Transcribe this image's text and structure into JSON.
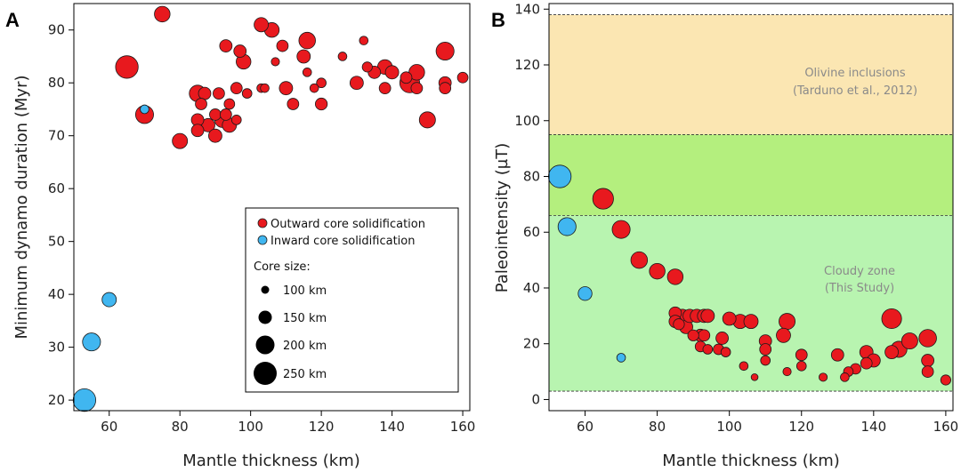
{
  "chart_data": [
    {
      "panel": "A",
      "type": "scatter",
      "xlabel": "Mantle thickness (km)",
      "ylabel": "Minimum dynamo duration (Myr)",
      "xlim": [
        50,
        162
      ],
      "ylim": [
        18,
        95
      ],
      "xticks": [
        60,
        80,
        100,
        120,
        140,
        160
      ],
      "yticks": [
        20,
        30,
        40,
        50,
        60,
        70,
        80,
        90
      ],
      "grid": false,
      "legend_position": "lower-right",
      "series": [
        {
          "name": "Outward core solidification",
          "color": "#e8191e",
          "points": [
            {
              "x": 65,
              "y": 83,
              "core_km": 250
            },
            {
              "x": 75,
              "y": 93,
              "core_km": 175
            },
            {
              "x": 70,
              "y": 74,
              "core_km": 200
            },
            {
              "x": 80,
              "y": 69,
              "core_km": 170
            },
            {
              "x": 85,
              "y": 78,
              "core_km": 185
            },
            {
              "x": 85,
              "y": 73,
              "core_km": 140
            },
            {
              "x": 85,
              "y": 71,
              "core_km": 140
            },
            {
              "x": 86,
              "y": 76,
              "core_km": 130
            },
            {
              "x": 87,
              "y": 78,
              "core_km": 140
            },
            {
              "x": 88,
              "y": 72,
              "core_km": 150
            },
            {
              "x": 90,
              "y": 74,
              "core_km": 130
            },
            {
              "x": 90,
              "y": 70,
              "core_km": 150
            },
            {
              "x": 91,
              "y": 78,
              "core_km": 130
            },
            {
              "x": 92,
              "y": 73,
              "core_km": 170
            },
            {
              "x": 93,
              "y": 74,
              "core_km": 130
            },
            {
              "x": 93,
              "y": 87,
              "core_km": 140
            },
            {
              "x": 94,
              "y": 76,
              "core_km": 120
            },
            {
              "x": 94,
              "y": 72,
              "core_km": 160
            },
            {
              "x": 96,
              "y": 73,
              "core_km": 110
            },
            {
              "x": 96,
              "y": 79,
              "core_km": 130
            },
            {
              "x": 97,
              "y": 86,
              "core_km": 140
            },
            {
              "x": 98,
              "y": 84,
              "core_km": 165
            },
            {
              "x": 99,
              "y": 78,
              "core_km": 110
            },
            {
              "x": 103,
              "y": 91,
              "core_km": 160
            },
            {
              "x": 103,
              "y": 79,
              "core_km": 100
            },
            {
              "x": 104,
              "y": 79,
              "core_km": 100
            },
            {
              "x": 106,
              "y": 90,
              "core_km": 165
            },
            {
              "x": 107,
              "y": 84,
              "core_km": 95
            },
            {
              "x": 109,
              "y": 87,
              "core_km": 130
            },
            {
              "x": 110,
              "y": 79,
              "core_km": 150
            },
            {
              "x": 112,
              "y": 76,
              "core_km": 130
            },
            {
              "x": 115,
              "y": 85,
              "core_km": 150
            },
            {
              "x": 116,
              "y": 88,
              "core_km": 185
            },
            {
              "x": 116,
              "y": 82,
              "core_km": 100
            },
            {
              "x": 118,
              "y": 79,
              "core_km": 100
            },
            {
              "x": 120,
              "y": 80,
              "core_km": 110
            },
            {
              "x": 120,
              "y": 76,
              "core_km": 135
            },
            {
              "x": 126,
              "y": 85,
              "core_km": 100
            },
            {
              "x": 130,
              "y": 80,
              "core_km": 150
            },
            {
              "x": 132,
              "y": 88,
              "core_km": 100
            },
            {
              "x": 133,
              "y": 83,
              "core_km": 115
            },
            {
              "x": 135,
              "y": 82,
              "core_km": 140
            },
            {
              "x": 138,
              "y": 83,
              "core_km": 165
            },
            {
              "x": 138,
              "y": 79,
              "core_km": 130
            },
            {
              "x": 140,
              "y": 82,
              "core_km": 150
            },
            {
              "x": 144,
              "y": 81,
              "core_km": 130
            },
            {
              "x": 145,
              "y": 80,
              "core_km": 220
            },
            {
              "x": 147,
              "y": 82,
              "core_km": 175
            },
            {
              "x": 147,
              "y": 79,
              "core_km": 130
            },
            {
              "x": 150,
              "y": 73,
              "core_km": 180
            },
            {
              "x": 155,
              "y": 86,
              "core_km": 200
            },
            {
              "x": 155,
              "y": 80,
              "core_km": 140
            },
            {
              "x": 155,
              "y": 79,
              "core_km": 130
            },
            {
              "x": 160,
              "y": 81,
              "core_km": 120
            }
          ]
        },
        {
          "name": "Inward core solidification",
          "color": "#40b6f0",
          "points": [
            {
              "x": 53,
              "y": 20,
              "core_km": 250
            },
            {
              "x": 55,
              "y": 31,
              "core_km": 200
            },
            {
              "x": 60,
              "y": 39,
              "core_km": 160
            },
            {
              "x": 70,
              "y": 75,
              "core_km": 100
            }
          ]
        }
      ],
      "size_legend": {
        "title": "Core size:",
        "entries": [
          {
            "label": "100 km",
            "core_km": 100
          },
          {
            "label": "150 km",
            "core_km": 150
          },
          {
            "label": "200 km",
            "core_km": 200
          },
          {
            "label": "250 km",
            "core_km": 250
          }
        ]
      }
    },
    {
      "panel": "B",
      "type": "scatter",
      "xlabel": "Mantle thickness (km)",
      "ylabel": "Paleointensity (µT)",
      "xlim": [
        50,
        162
      ],
      "ylim": [
        -4,
        142
      ],
      "xticks": [
        60,
        80,
        100,
        120,
        140,
        160
      ],
      "yticks": [
        0,
        20,
        40,
        60,
        80,
        100,
        120,
        140
      ],
      "grid": false,
      "bands": [
        {
          "y0": 95,
          "y1": 138,
          "color": "#fbe6b2",
          "label_lines": [
            "Olivine inclusions",
            "(Tarduno et al., 2012)"
          ]
        },
        {
          "y0": 66,
          "y1": 95,
          "color": "#b4ef7e",
          "label_lines": []
        },
        {
          "y0": 3,
          "y1": 66,
          "color": "#b8f4b0",
          "label_lines": [
            "Cloudy zone",
            "(This Study)"
          ]
        }
      ],
      "band_boundaries": [
        138,
        95,
        66,
        3
      ],
      "series": [
        {
          "name": "Outward core solidification",
          "color": "#e8191e",
          "points": [
            {
              "x": 65,
              "y": 72,
              "core_km": 230
            },
            {
              "x": 70,
              "y": 61,
              "core_km": 200
            },
            {
              "x": 75,
              "y": 50,
              "core_km": 185
            },
            {
              "x": 80,
              "y": 46,
              "core_km": 175
            },
            {
              "x": 85,
              "y": 44,
              "core_km": 175
            },
            {
              "x": 85,
              "y": 31,
              "core_km": 140
            },
            {
              "x": 85,
              "y": 28,
              "core_km": 140
            },
            {
              "x": 86,
              "y": 27,
              "core_km": 125
            },
            {
              "x": 87,
              "y": 30,
              "core_km": 150
            },
            {
              "x": 88,
              "y": 26,
              "core_km": 150
            },
            {
              "x": 89,
              "y": 30,
              "core_km": 150
            },
            {
              "x": 90,
              "y": 23,
              "core_km": 125
            },
            {
              "x": 91,
              "y": 30,
              "core_km": 150
            },
            {
              "x": 92,
              "y": 23,
              "core_km": 140
            },
            {
              "x": 92,
              "y": 19,
              "core_km": 120
            },
            {
              "x": 93,
              "y": 30,
              "core_km": 150
            },
            {
              "x": 93,
              "y": 23,
              "core_km": 130
            },
            {
              "x": 94,
              "y": 30,
              "core_km": 150
            },
            {
              "x": 94,
              "y": 18,
              "core_km": 110
            },
            {
              "x": 97,
              "y": 18,
              "core_km": 120
            },
            {
              "x": 98,
              "y": 22,
              "core_km": 140
            },
            {
              "x": 99,
              "y": 17,
              "core_km": 110
            },
            {
              "x": 100,
              "y": 29,
              "core_km": 150
            },
            {
              "x": 103,
              "y": 28,
              "core_km": 160
            },
            {
              "x": 104,
              "y": 12,
              "core_km": 100
            },
            {
              "x": 106,
              "y": 28,
              "core_km": 160
            },
            {
              "x": 107,
              "y": 8,
              "core_km": 80
            },
            {
              "x": 110,
              "y": 21,
              "core_km": 140
            },
            {
              "x": 110,
              "y": 18,
              "core_km": 130
            },
            {
              "x": 110,
              "y": 14,
              "core_km": 110
            },
            {
              "x": 115,
              "y": 23,
              "core_km": 160
            },
            {
              "x": 116,
              "y": 28,
              "core_km": 180
            },
            {
              "x": 116,
              "y": 10,
              "core_km": 95
            },
            {
              "x": 120,
              "y": 16,
              "core_km": 130
            },
            {
              "x": 120,
              "y": 12,
              "core_km": 110
            },
            {
              "x": 126,
              "y": 8,
              "core_km": 95
            },
            {
              "x": 130,
              "y": 16,
              "core_km": 140
            },
            {
              "x": 132,
              "y": 8,
              "core_km": 100
            },
            {
              "x": 133,
              "y": 10,
              "core_km": 110
            },
            {
              "x": 135,
              "y": 11,
              "core_km": 120
            },
            {
              "x": 138,
              "y": 17,
              "core_km": 150
            },
            {
              "x": 138,
              "y": 13,
              "core_km": 130
            },
            {
              "x": 140,
              "y": 14,
              "core_km": 150
            },
            {
              "x": 145,
              "y": 29,
              "core_km": 220
            },
            {
              "x": 145,
              "y": 17,
              "core_km": 150
            },
            {
              "x": 147,
              "y": 18,
              "core_km": 180
            },
            {
              "x": 150,
              "y": 21,
              "core_km": 180
            },
            {
              "x": 155,
              "y": 22,
              "core_km": 195
            },
            {
              "x": 155,
              "y": 14,
              "core_km": 140
            },
            {
              "x": 155,
              "y": 10,
              "core_km": 130
            },
            {
              "x": 160,
              "y": 7,
              "core_km": 115
            }
          ]
        },
        {
          "name": "Inward core solidification",
          "color": "#40b6f0",
          "points": [
            {
              "x": 53,
              "y": 80,
              "core_km": 250
            },
            {
              "x": 55,
              "y": 62,
              "core_km": 200
            },
            {
              "x": 60,
              "y": 38,
              "core_km": 155
            },
            {
              "x": 70,
              "y": 15,
              "core_km": 100
            }
          ]
        }
      ]
    }
  ]
}
